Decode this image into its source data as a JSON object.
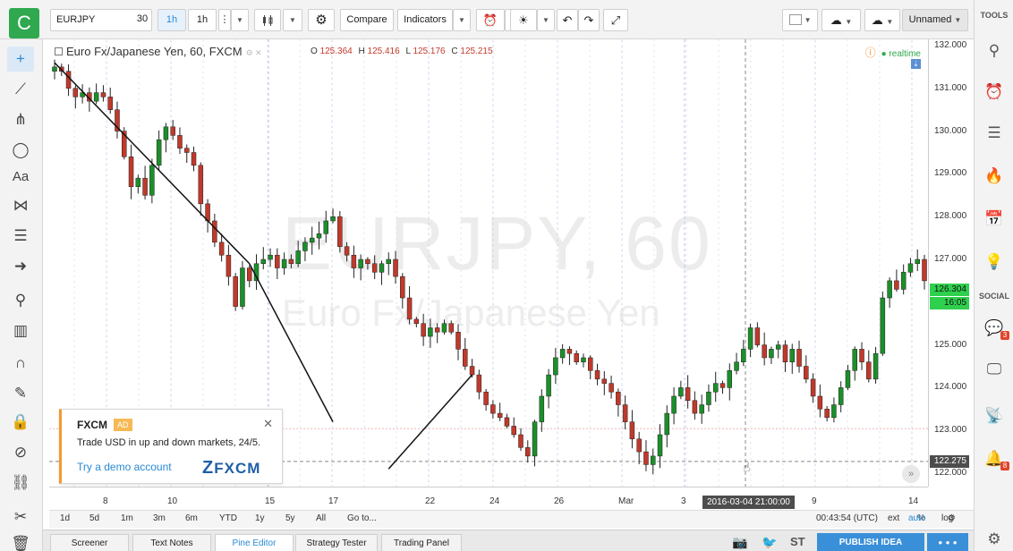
{
  "toolbar": {
    "logo": "C",
    "symbol": "EURJPY",
    "interval_value": "30",
    "interval_active": "1h",
    "interval_current": "1h",
    "compare": "Compare",
    "indicators": "Indicators",
    "layout_name": "Unnamed"
  },
  "legend": {
    "title": "Euro Fx/Japanese Yen, 60, FXCM",
    "open_label": "O",
    "open": "125.364",
    "high_label": "H",
    "high": "125.416",
    "low_label": "L",
    "low": "125.176",
    "close_label": "C",
    "close": "125.215",
    "realtime": "realtime"
  },
  "watermark": {
    "symbol": "EURJPY, 60",
    "name": "Euro Fx/Japanese Yen"
  },
  "price_axis": {
    "labels": [
      "132.000",
      "131.000",
      "130.000",
      "129.000",
      "128.000",
      "127.000",
      "126.000",
      "125.000",
      "124.000",
      "123.000",
      "122.000"
    ],
    "current_price": "126.304",
    "countdown": "16:05",
    "crosshair_price": "122.275"
  },
  "time_axis": {
    "labels": [
      "8",
      "10",
      "15",
      "17",
      "22",
      "24",
      "26",
      "Mar",
      "3",
      "9",
      "14"
    ],
    "crosshair_time": "2016-03-04 21:00:00"
  },
  "range_bar": {
    "ranges": [
      "1d",
      "5d",
      "1m",
      "3m",
      "6m",
      "YTD",
      "1y",
      "5y",
      "All"
    ],
    "goto": "Go to...",
    "clock": "00:43:54 (UTC)",
    "ext": "ext",
    "percent": "%",
    "log": "log",
    "auto": "auto"
  },
  "bottom_tabs": [
    "Screener",
    "Text Notes",
    "Pine Editor",
    "Strategy Tester",
    "Trading Panel"
  ],
  "bottom_right": {
    "st": "ST",
    "publish": "PUBLISH IDEA",
    "more": "• • •"
  },
  "right_panel": {
    "tools": "TOOLS",
    "social": "SOCIAL",
    "badge_a": "3",
    "badge_b": "8"
  },
  "ad": {
    "title": "FXCM",
    "badge": "AD",
    "text": "Trade USD in up and down markets, 24/5.",
    "link": "Try a demo account",
    "logo": "FXCM"
  },
  "chart_data": {
    "type": "candlestick",
    "x_labels": [
      "8",
      "10",
      "15",
      "17",
      "22",
      "24",
      "26",
      "Mar",
      "3",
      "9",
      "14"
    ],
    "y_range": [
      121.5,
      132.0
    ],
    "closes": [
      131.5,
      131.4,
      131.0,
      130.8,
      130.9,
      130.7,
      130.9,
      130.8,
      130.5,
      130.0,
      129.4,
      128.7,
      128.9,
      128.5,
      129.2,
      129.8,
      130.1,
      129.9,
      129.6,
      129.5,
      129.2,
      128.3,
      127.9,
      127.4,
      127.1,
      126.6,
      125.9,
      126.8,
      126.5,
      126.9,
      127.0,
      127.1,
      126.8,
      127.0,
      126.9,
      127.2,
      127.4,
      127.5,
      127.6,
      127.9,
      128.0,
      127.3,
      127.1,
      126.8,
      127.0,
      126.9,
      126.7,
      126.9,
      127.0,
      126.6,
      126.1,
      125.6,
      125.5,
      125.2,
      125.4,
      125.3,
      125.5,
      125.3,
      124.9,
      124.5,
      124.3,
      123.9,
      123.6,
      123.4,
      123.3,
      123.1,
      122.9,
      122.6,
      122.4,
      123.2,
      123.8,
      124.3,
      124.7,
      124.9,
      124.8,
      124.6,
      124.7,
      124.4,
      124.2,
      124.1,
      123.9,
      123.6,
      123.2,
      122.8,
      122.5,
      122.2,
      122.4,
      122.9,
      123.4,
      123.8,
      124.0,
      123.7,
      123.4,
      123.6,
      123.9,
      124.1,
      124.0,
      124.4,
      124.6,
      124.9,
      125.4,
      125.0,
      124.7,
      124.9,
      125.0,
      124.6,
      124.9,
      124.5,
      124.2,
      123.8,
      123.5,
      123.3,
      123.6,
      124.0,
      124.4,
      124.9,
      124.6,
      124.2,
      124.8,
      126.1,
      126.5,
      126.3,
      126.7,
      126.9,
      127.0,
      126.5
    ],
    "trendlines": [
      {
        "from": [
          0,
          131.6
        ],
        "to": [
          28,
          126.9
        ]
      },
      {
        "from": [
          28,
          126.9
        ],
        "to": [
          40,
          123.2
        ]
      },
      {
        "from": [
          48,
          122.1
        ],
        "to": [
          60,
          124.3
        ]
      }
    ]
  }
}
